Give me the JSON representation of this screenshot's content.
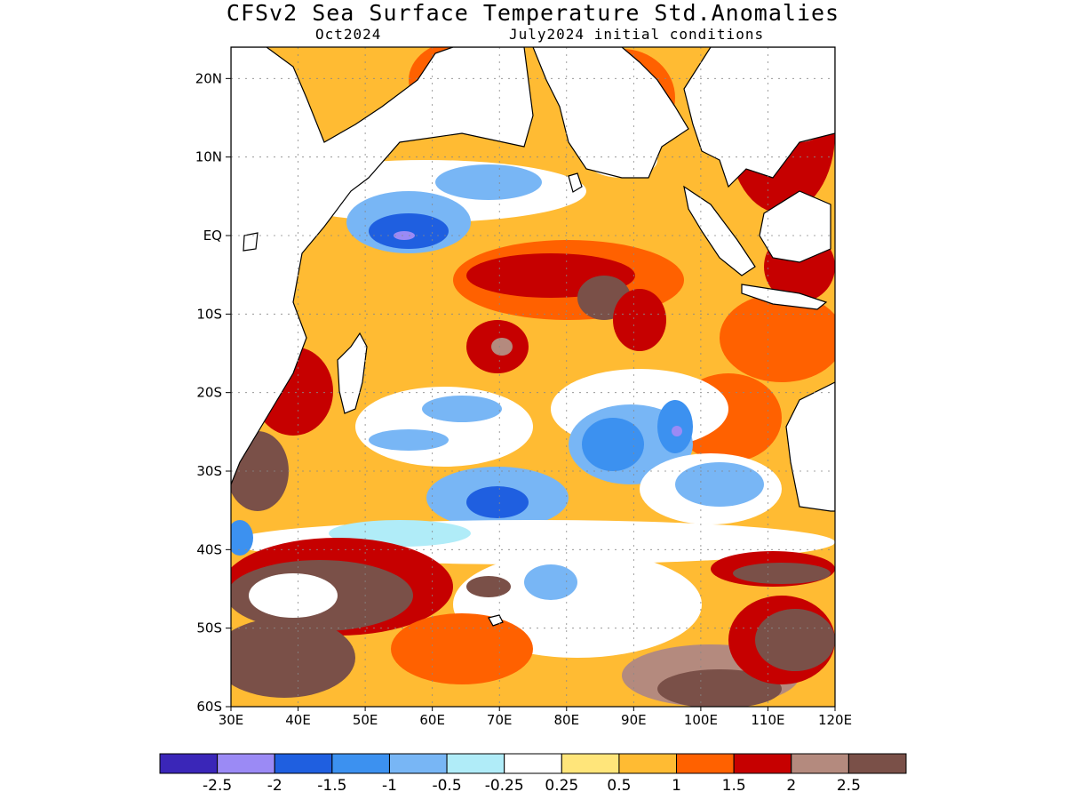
{
  "title": "CFSv2 Sea Surface Temperature Std.Anomalies",
  "subtitle_left": "Oct2024",
  "subtitle_right": "July2024 initial conditions",
  "map": {
    "lon_range": [
      30,
      120
    ],
    "lat_range": [
      -60,
      24
    ],
    "lat_ticks": [
      {
        "value": 20,
        "label": "20N"
      },
      {
        "value": 10,
        "label": "10N"
      },
      {
        "value": 0,
        "label": "EQ"
      },
      {
        "value": -10,
        "label": "10S"
      },
      {
        "value": -20,
        "label": "20S"
      },
      {
        "value": -30,
        "label": "30S"
      },
      {
        "value": -40,
        "label": "40S"
      },
      {
        "value": -50,
        "label": "50S"
      },
      {
        "value": -60,
        "label": "60S"
      }
    ],
    "lon_ticks": [
      {
        "value": 30,
        "label": "30E"
      },
      {
        "value": 40,
        "label": "40E"
      },
      {
        "value": 50,
        "label": "50E"
      },
      {
        "value": 60,
        "label": "60E"
      },
      {
        "value": 70,
        "label": "70E"
      },
      {
        "value": 80,
        "label": "80E"
      },
      {
        "value": 90,
        "label": "90E"
      },
      {
        "value": 100,
        "label": "100E"
      },
      {
        "value": 110,
        "label": "110E"
      },
      {
        "value": 120,
        "label": "120E"
      }
    ],
    "grid": "dotted"
  },
  "colorbar": {
    "colors": [
      "#3a26b8",
      "#9b8af5",
      "#1f5fe0",
      "#3c91f0",
      "#78b6f5",
      "#b0ecf8",
      "#ffffff",
      "#ffe57a",
      "#ffbb33",
      "#ff6100",
      "#c60000",
      "#b48a7e",
      "#7a5048"
    ],
    "labels": [
      "-2.5",
      "-2",
      "-1.5",
      "-1",
      "-0.5",
      "-0.25",
      "0.25",
      "0.5",
      "1",
      "1.5",
      "2",
      "2.5"
    ]
  }
}
